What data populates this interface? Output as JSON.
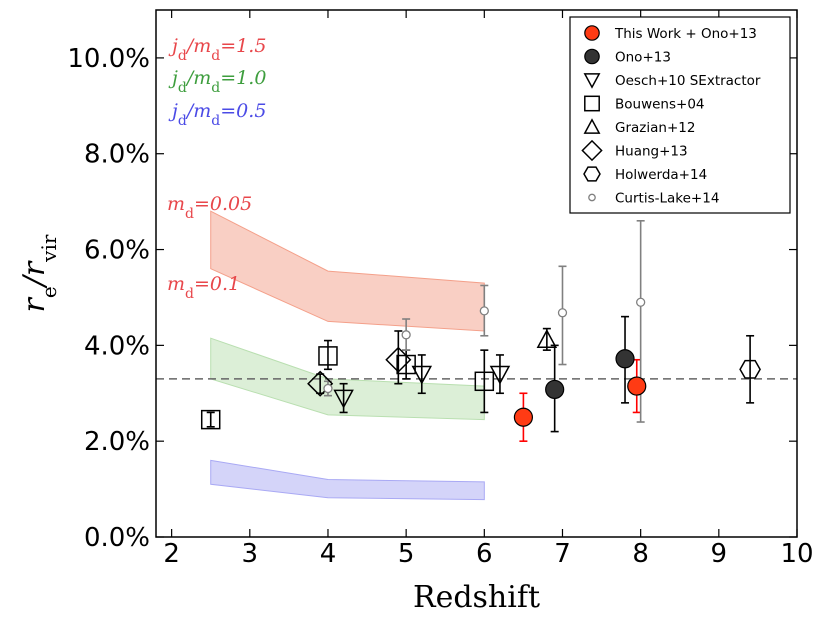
{
  "chart_data": {
    "type": "scatter",
    "xlabel": "Redshift",
    "ylabel": "r_e / r_vir",
    "xlim": [
      1.8,
      10
    ],
    "ylim": [
      0.0,
      11.0
    ],
    "x_ticks": [
      "2",
      "3",
      "4",
      "5",
      "6",
      "7",
      "8",
      "9",
      "10"
    ],
    "x_tick_values": [
      2,
      3,
      4,
      5,
      6,
      7,
      8,
      9,
      10
    ],
    "y_ticks": [
      "0.0%",
      "2.0%",
      "4.0%",
      "6.0%",
      "8.0%",
      "10.0%"
    ],
    "y_tick_values": [
      0,
      2,
      4,
      6,
      8,
      10
    ],
    "reference_line": {
      "y": 3.3,
      "style": "dashed",
      "color": "#666666"
    },
    "bands": [
      {
        "name": "j_d/m_d=1.5",
        "color": "#f4a08a",
        "x": [
          2.5,
          4,
          6
        ],
        "lower": [
          5.6,
          4.5,
          4.3
        ],
        "upper": [
          6.8,
          5.55,
          5.3
        ]
      },
      {
        "name": "j_d/m_d=1.0",
        "color": "#b9dfb0",
        "x": [
          2.5,
          4,
          6
        ],
        "lower": [
          3.3,
          2.55,
          2.45
        ],
        "upper": [
          4.15,
          3.3,
          3.15
        ]
      },
      {
        "name": "j_d/m_d=0.5",
        "color": "#a9a9f4",
        "x": [
          2.5,
          4,
          6
        ],
        "lower": [
          1.1,
          0.82,
          0.78
        ],
        "upper": [
          1.6,
          1.2,
          1.15
        ]
      }
    ],
    "annotations": {
      "jd15": "j_d/m_d=1.5",
      "jd10": "j_d/m_d=1.0",
      "jd05": "j_d/m_d=0.5",
      "md005": "m_d=0.05",
      "md01": "m_d=0.1"
    },
    "annotation_colors": {
      "jd15": "#e8474b",
      "jd10": "#3e9e3e",
      "jd05": "#4b4be6",
      "md005": "#e8474b",
      "md01": "#e8474b"
    },
    "series": [
      {
        "name": "This Work + Ono+13",
        "marker": "circle-filled",
        "color": "#ff3b14",
        "err_color": "#ff0000",
        "points": [
          {
            "x": 6.5,
            "y": 2.5,
            "lo": 2.0,
            "hi": 3.0
          },
          {
            "x": 7.95,
            "y": 3.15,
            "lo": 2.6,
            "hi": 3.7
          }
        ]
      },
      {
        "name": "Ono+13",
        "marker": "circle-filled",
        "color": "#333333",
        "err_color": "#000000",
        "points": [
          {
            "x": 6.9,
            "y": 3.08,
            "lo": 2.2,
            "hi": 4.0
          },
          {
            "x": 7.8,
            "y": 3.72,
            "lo": 2.8,
            "hi": 4.6
          }
        ]
      },
      {
        "name": "Oesch+10 SExtractor",
        "marker": "triangle-down",
        "color": "#000000",
        "err_color": "#000000",
        "points": [
          {
            "x": 4.2,
            "y": 2.9,
            "lo": 2.6,
            "hi": 3.2
          },
          {
            "x": 5.2,
            "y": 3.4,
            "lo": 3.0,
            "hi": 3.8
          },
          {
            "x": 6.2,
            "y": 3.4,
            "lo": 3.0,
            "hi": 3.8
          }
        ]
      },
      {
        "name": "Bouwens+04",
        "marker": "square",
        "color": "#000000",
        "err_color": "#000000",
        "points": [
          {
            "x": 2.5,
            "y": 2.45,
            "lo": 2.3,
            "hi": 2.6
          },
          {
            "x": 4.0,
            "y": 3.78,
            "lo": 3.5,
            "hi": 4.1
          },
          {
            "x": 5.0,
            "y": 3.6,
            "lo": 3.3,
            "hi": 3.9
          },
          {
            "x": 6.0,
            "y": 3.25,
            "lo": 2.6,
            "hi": 3.9
          }
        ]
      },
      {
        "name": "Grazian+12",
        "marker": "triangle-up",
        "color": "#000000",
        "err_color": "#000000",
        "points": [
          {
            "x": 6.8,
            "y": 4.12,
            "lo": 3.9,
            "hi": 4.35
          }
        ]
      },
      {
        "name": "Huang+13",
        "marker": "diamond",
        "color": "#000000",
        "err_color": "#000000",
        "points": [
          {
            "x": 3.9,
            "y": 3.2,
            "lo": 3.0,
            "hi": 3.4
          },
          {
            "x": 4.9,
            "y": 3.7,
            "lo": 3.2,
            "hi": 4.3
          }
        ]
      },
      {
        "name": "Holwerda+14",
        "marker": "hexagon",
        "color": "#000000",
        "err_color": "#000000",
        "points": [
          {
            "x": 9.4,
            "y": 3.5,
            "lo": 2.8,
            "hi": 4.2
          }
        ]
      },
      {
        "name": "Curtis-Lake+14",
        "marker": "circle-small",
        "color": "#808080",
        "err_color": "#808080",
        "points": [
          {
            "x": 4.0,
            "y": 3.1,
            "lo": 2.95,
            "hi": 3.25
          },
          {
            "x": 5.0,
            "y": 4.22,
            "lo": 3.9,
            "hi": 4.55
          },
          {
            "x": 6.0,
            "y": 4.72,
            "lo": 4.2,
            "hi": 5.25
          },
          {
            "x": 7.0,
            "y": 4.68,
            "lo": 3.6,
            "hi": 5.65
          },
          {
            "x": 8.0,
            "y": 4.9,
            "lo": 2.4,
            "hi": 6.6
          }
        ]
      }
    ],
    "legend_position": "top-right"
  }
}
